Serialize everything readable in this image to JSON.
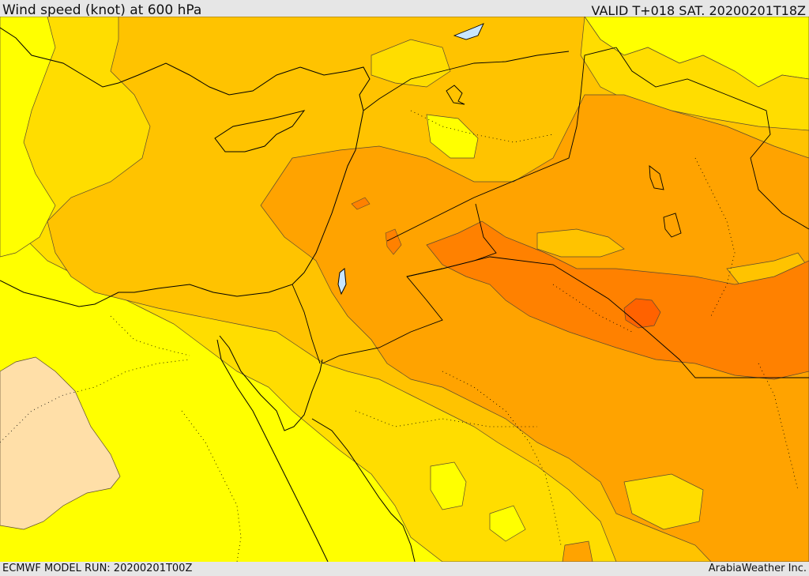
{
  "header": {
    "title": "Wind speed (knot) at 600 hPa",
    "valid_time": "VALID T+018 SAT. 20200201T18Z"
  },
  "footer": {
    "model_run": "ECMWF MODEL RUN: 20200201T00Z",
    "credit": "ArabiaWeather Inc."
  },
  "map": {
    "variable": "wind speed",
    "units": "knot",
    "level": "600 hPa",
    "region": "Eastern Mediterranean / Middle East",
    "colors": {
      "lowest": "#ffdfa8",
      "low": "#ffff00",
      "mid": "#ffdd00",
      "mid_high": "#ffc300",
      "high": "#ffa300",
      "higher": "#ff8100",
      "highest": "#ff6200",
      "coastline": "#000000",
      "contour": "#4a3a20"
    }
  }
}
